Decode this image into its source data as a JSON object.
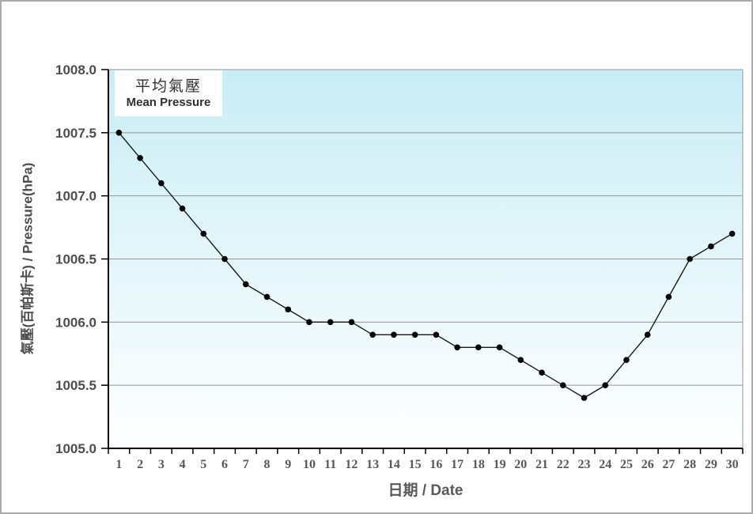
{
  "chart_data": {
    "type": "line",
    "legend": {
      "title_zh": "平均氣壓",
      "title_en": "Mean Pressure",
      "position": "top-left"
    },
    "xlabel": "日期 / Date",
    "ylabel": "氣壓(百帕斯卡) / Pressure(hPa)",
    "x": [
      1,
      2,
      3,
      4,
      5,
      6,
      7,
      8,
      9,
      10,
      11,
      12,
      13,
      14,
      15,
      16,
      17,
      18,
      19,
      20,
      21,
      22,
      23,
      24,
      25,
      26,
      27,
      28,
      29,
      30
    ],
    "values": [
      1007.5,
      1007.3,
      1007.1,
      1006.9,
      1006.7,
      1006.5,
      1006.3,
      1006.2,
      1006.1,
      1006.0,
      1006.0,
      1006.0,
      1005.9,
      1005.9,
      1005.9,
      1005.9,
      1005.8,
      1005.8,
      1005.8,
      1005.7,
      1005.6,
      1005.5,
      1005.4,
      1005.5,
      1005.7,
      1005.9,
      1006.2,
      1006.5,
      1006.6,
      1006.7
    ],
    "ylim": [
      1005.0,
      1008.0
    ],
    "ytick_step": 0.5,
    "yticks": [
      "1008.0",
      "1007.5",
      "1007.0",
      "1006.5",
      "1006.0",
      "1005.5",
      "1005.0"
    ],
    "grid": "horizontal",
    "colors": {
      "line": "#1a1a1a",
      "marker": "#000000",
      "plot_bg_top": "#c9edf5",
      "plot_bg_bottom": "#ffffff",
      "gridline": "#969696",
      "axis": "#000000",
      "tick_label_y": "#4d4d4d",
      "tick_label_x": "#595959",
      "title_text": "#595959"
    }
  }
}
